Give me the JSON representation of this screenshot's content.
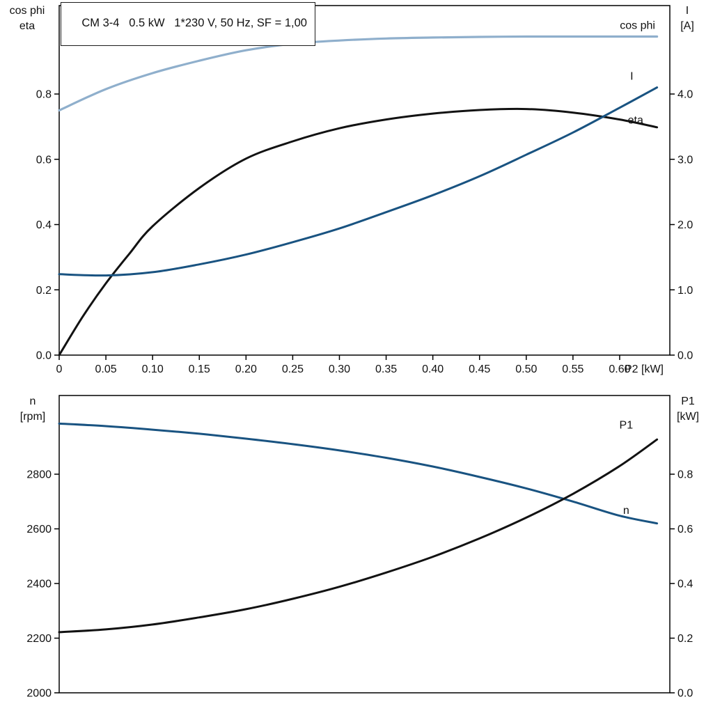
{
  "title_box": {
    "text": "CM 3-4   0.5 kW   1*230 V, 50 Hz, SF = 1,00"
  },
  "colors": {
    "dark_blue": "#195381",
    "light_blue": "#8fafcc",
    "black": "#121212",
    "frame": "#000000"
  },
  "chart_data": [
    {
      "type": "line",
      "title": "CM 3-4   0.5 kW   1*230 V, 50 Hz, SF = 1,00",
      "x_axis": {
        "label": "P2 [kW]",
        "range": [
          0,
          0.6537
        ],
        "ticks": [
          0,
          0.05,
          0.1,
          0.15,
          0.2,
          0.25,
          0.3,
          0.35,
          0.4,
          0.45,
          0.5,
          0.55,
          0.6
        ],
        "tick_labels": [
          "0",
          "0.05",
          "0.10",
          "0.15",
          "0.20",
          "0.25",
          "0.30",
          "0.35",
          "0.40",
          "0.45",
          "0.50",
          "0.55",
          "0.60"
        ]
      },
      "left_axis": {
        "label_lines": [
          "cos phi",
          "eta"
        ],
        "range": [
          0,
          1.071
        ],
        "ticks": [
          0,
          0.2,
          0.4,
          0.6,
          0.8
        ],
        "tick_labels": [
          "0.0",
          "0.2",
          "0.4",
          "0.6",
          "0.8"
        ]
      },
      "right_axis": {
        "label_lines": [
          "I",
          "[A]"
        ],
        "range": [
          0,
          5.355
        ],
        "ticks": [
          0,
          1,
          2,
          3,
          4
        ],
        "tick_labels": [
          "0.0",
          "1.0",
          "2.0",
          "3.0",
          "4.0"
        ]
      },
      "series": [
        {
          "name": "cos phi",
          "axis": "left",
          "color": "light_blue",
          "width": 3.2,
          "x": [
            0,
            0.05,
            0.1,
            0.15,
            0.2,
            0.25,
            0.3,
            0.35,
            0.4,
            0.45,
            0.5,
            0.55,
            0.6,
            0.64
          ],
          "y": [
            0.75,
            0.815,
            0.864,
            0.902,
            0.934,
            0.954,
            0.964,
            0.97,
            0.973,
            0.975,
            0.976,
            0.976,
            0.976,
            0.976
          ],
          "label": {
            "text": "cos phi",
            "x": 0.638,
            "v": 1.01,
            "anchor": "end"
          }
        },
        {
          "name": "eta",
          "axis": "left",
          "color": "black",
          "width": 3,
          "x": [
            0,
            0.025,
            0.05,
            0.075,
            0.1,
            0.15,
            0.2,
            0.25,
            0.3,
            0.35,
            0.4,
            0.45,
            0.5,
            0.55,
            0.6,
            0.64
          ],
          "y": [
            0,
            0.117,
            0.22,
            0.31,
            0.395,
            0.512,
            0.602,
            0.655,
            0.695,
            0.722,
            0.74,
            0.751,
            0.754,
            0.743,
            0.722,
            0.698
          ],
          "label": {
            "text": "eta",
            "x": 0.617,
            "v": 0.72,
            "anchor": "middle"
          }
        },
        {
          "name": "I",
          "axis": "right",
          "color": "dark_blue",
          "width": 3,
          "x": [
            0,
            0.05,
            0.1,
            0.15,
            0.2,
            0.25,
            0.3,
            0.35,
            0.4,
            0.45,
            0.5,
            0.55,
            0.6,
            0.64
          ],
          "y": [
            1.24,
            1.22,
            1.27,
            1.39,
            1.54,
            1.73,
            1.94,
            2.19,
            2.45,
            2.74,
            3.07,
            3.41,
            3.79,
            4.1
          ],
          "label": {
            "text": "I",
            "x": 0.613,
            "v": 4.27,
            "anchor": "middle"
          }
        }
      ]
    },
    {
      "type": "line",
      "x_axis": {
        "label": "",
        "range": [
          0,
          0.6537
        ],
        "ticks": [],
        "tick_labels": []
      },
      "left_axis": {
        "label_lines": [
          "n",
          "[rpm]"
        ],
        "range": [
          2000,
          3088
        ],
        "ticks": [
          2000,
          2200,
          2400,
          2600,
          2800
        ],
        "tick_labels": [
          "2000",
          "2200",
          "2400",
          "2600",
          "2800"
        ]
      },
      "right_axis": {
        "label_lines": [
          "P1",
          "[kW]"
        ],
        "range": [
          0,
          1.088
        ],
        "ticks": [
          0,
          0.2,
          0.4,
          0.6,
          0.8
        ],
        "tick_labels": [
          "0.0",
          "0.2",
          "0.4",
          "0.6",
          "0.8"
        ]
      },
      "series": [
        {
          "name": "n",
          "axis": "left",
          "color": "dark_blue",
          "width": 3,
          "x": [
            0,
            0.05,
            0.1,
            0.15,
            0.2,
            0.25,
            0.3,
            0.35,
            0.4,
            0.45,
            0.5,
            0.55,
            0.6,
            0.64
          ],
          "y": [
            2985,
            2976,
            2963,
            2948,
            2930,
            2910,
            2887,
            2860,
            2828,
            2790,
            2748,
            2700,
            2648,
            2620
          ],
          "label": {
            "text": "n",
            "x": 0.607,
            "v": 2668,
            "anchor": "middle"
          }
        },
        {
          "name": "P1",
          "axis": "right",
          "color": "black",
          "width": 3,
          "x": [
            0,
            0.05,
            0.1,
            0.15,
            0.2,
            0.25,
            0.3,
            0.35,
            0.4,
            0.45,
            0.5,
            0.55,
            0.6,
            0.64
          ],
          "y": [
            0.222,
            0.232,
            0.25,
            0.276,
            0.306,
            0.344,
            0.388,
            0.44,
            0.498,
            0.565,
            0.641,
            0.728,
            0.83,
            0.927
          ],
          "label": {
            "text": "P1",
            "x": 0.607,
            "v": 0.98,
            "anchor": "middle"
          }
        }
      ]
    }
  ]
}
